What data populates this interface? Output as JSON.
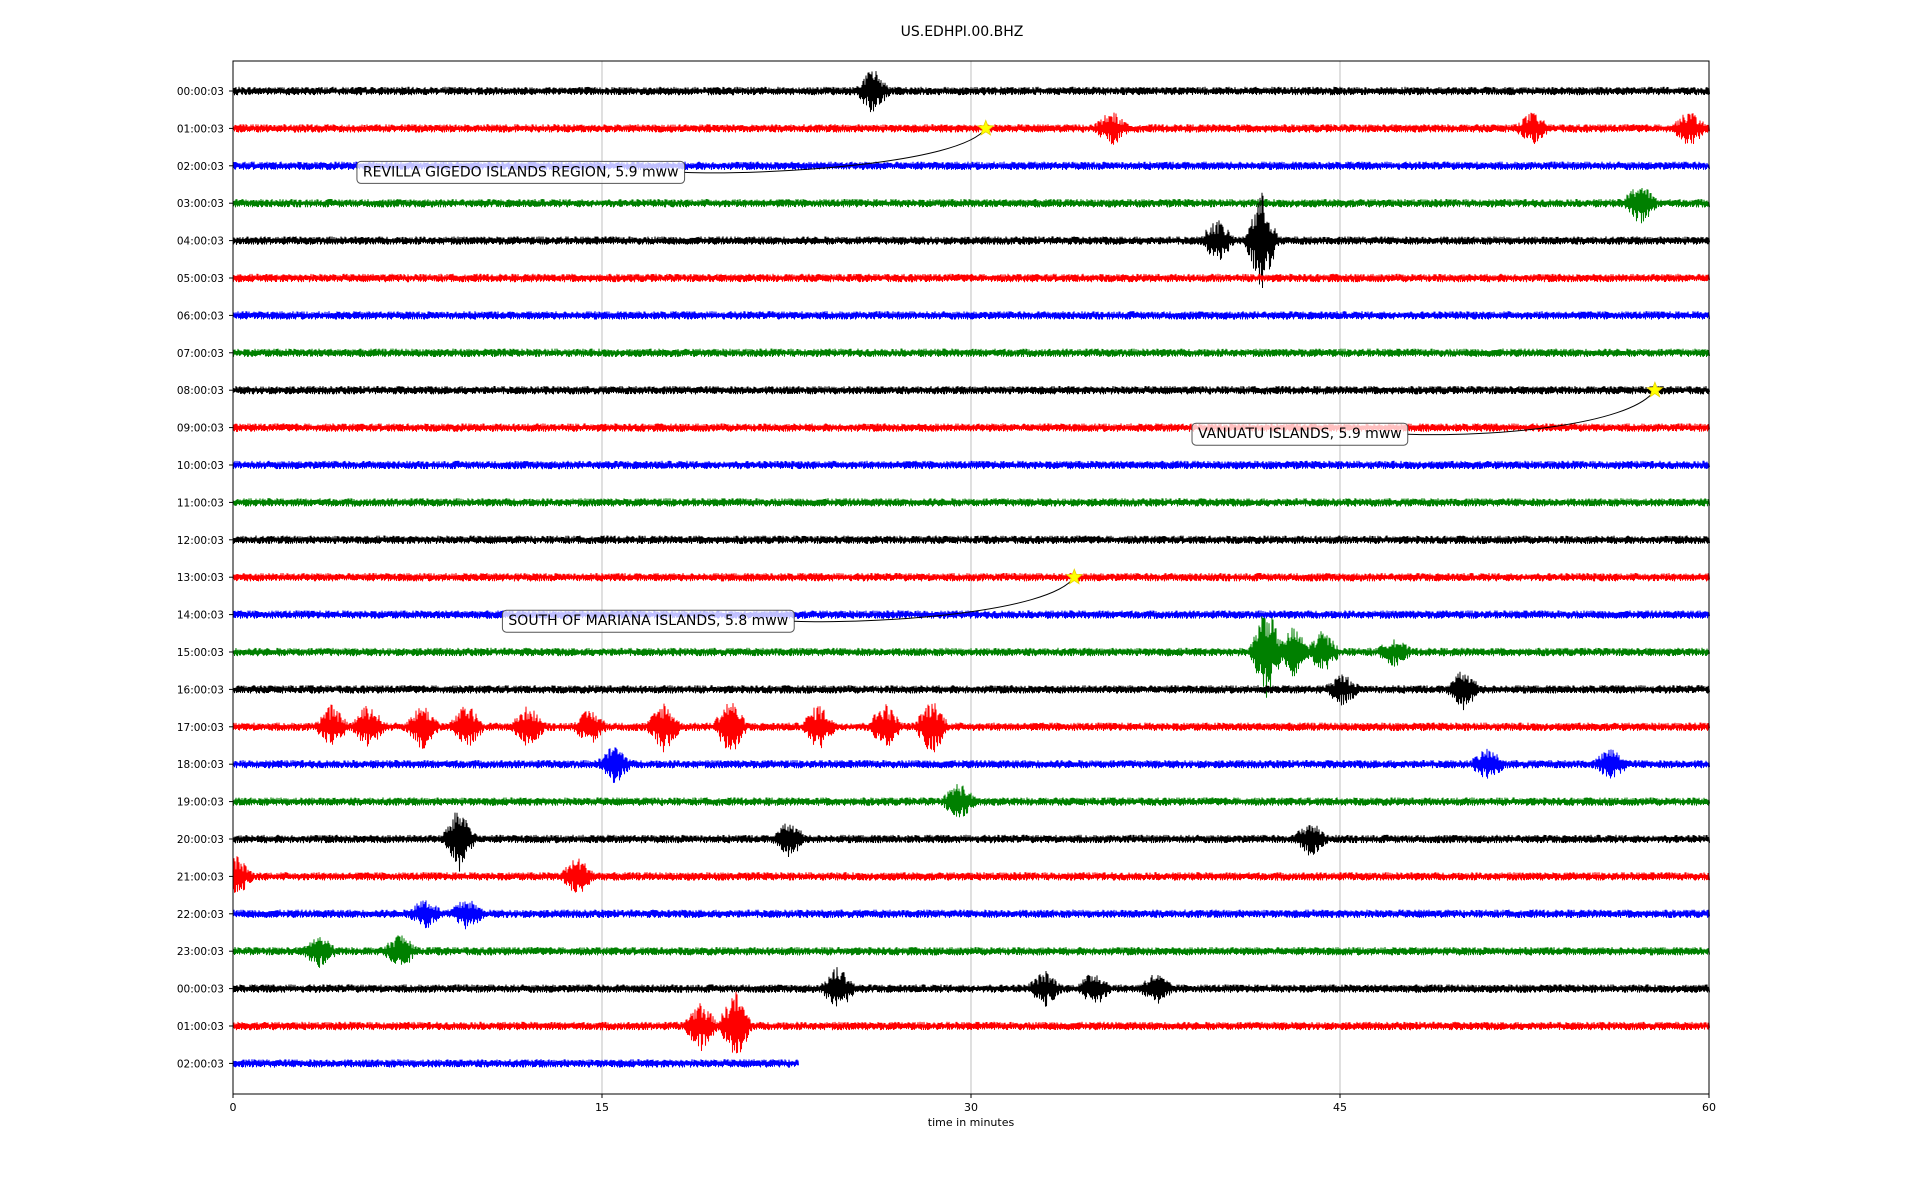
{
  "chart_data": {
    "type": "line",
    "title": "US.EDHPI.00.BHZ",
    "xlabel": "time in minutes",
    "ylabel": "",
    "xlim": [
      0,
      60
    ],
    "x_ticks": [
      0,
      15,
      30,
      45,
      60
    ],
    "grid": "vertical lines at x ticks",
    "row_labels": [
      "00:00:03",
      "01:00:03",
      "02:00:03",
      "03:00:03",
      "04:00:03",
      "05:00:03",
      "06:00:03",
      "07:00:03",
      "08:00:03",
      "09:00:03",
      "10:00:03",
      "11:00:03",
      "12:00:03",
      "13:00:03",
      "14:00:03",
      "15:00:03",
      "16:00:03",
      "17:00:03",
      "18:00:03",
      "19:00:03",
      "20:00:03",
      "21:00:03",
      "22:00:03",
      "23:00:03",
      "00:00:03",
      "01:00:03",
      "02:00:03"
    ],
    "trace_colors": [
      "#000000",
      "#ff0000",
      "#0000ff",
      "#008000"
    ],
    "last_trace_end_minute": 23.0,
    "events": [
      {
        "row": 1,
        "minute": 30.6,
        "label": "REVILLA GIGEDO ISLANDS REGION, 5.9 mww"
      },
      {
        "row": 8,
        "minute": 57.8,
        "label": "VANUATU ISLANDS, 5.9 mww"
      },
      {
        "row": 13,
        "minute": 34.2,
        "label": "SOUTH OF MARIANA ISLANDS, 5.8 mww"
      }
    ],
    "bursts": [
      {
        "row": 0,
        "minute": 26.0,
        "amp": 0.55
      },
      {
        "row": 1,
        "minute": 35.7,
        "amp": 0.4
      },
      {
        "row": 1,
        "minute": 52.8,
        "amp": 0.35
      },
      {
        "row": 1,
        "minute": 59.2,
        "amp": 0.4
      },
      {
        "row": 3,
        "minute": 57.2,
        "amp": 0.5
      },
      {
        "row": 4,
        "minute": 40.0,
        "amp": 0.5
      },
      {
        "row": 4,
        "minute": 41.8,
        "amp": 1.25
      },
      {
        "row": 15,
        "minute": 42.0,
        "amp": 1.25
      },
      {
        "row": 15,
        "minute": 43.1,
        "amp": 0.6
      },
      {
        "row": 15,
        "minute": 44.3,
        "amp": 0.5
      },
      {
        "row": 15,
        "minute": 47.2,
        "amp": 0.3
      },
      {
        "row": 16,
        "minute": 45.1,
        "amp": 0.35
      },
      {
        "row": 16,
        "minute": 50.0,
        "amp": 0.45
      },
      {
        "row": 17,
        "minute": 4.0,
        "amp": 0.5
      },
      {
        "row": 17,
        "minute": 5.5,
        "amp": 0.55
      },
      {
        "row": 17,
        "minute": 7.7,
        "amp": 0.55
      },
      {
        "row": 17,
        "minute": 9.5,
        "amp": 0.55
      },
      {
        "row": 17,
        "minute": 12.0,
        "amp": 0.5
      },
      {
        "row": 17,
        "minute": 14.5,
        "amp": 0.4
      },
      {
        "row": 17,
        "minute": 17.5,
        "amp": 0.6
      },
      {
        "row": 17,
        "minute": 20.2,
        "amp": 0.7
      },
      {
        "row": 17,
        "minute": 23.8,
        "amp": 0.55
      },
      {
        "row": 17,
        "minute": 26.5,
        "amp": 0.6
      },
      {
        "row": 17,
        "minute": 28.4,
        "amp": 0.7
      },
      {
        "row": 18,
        "minute": 15.5,
        "amp": 0.45
      },
      {
        "row": 18,
        "minute": 51.0,
        "amp": 0.35
      },
      {
        "row": 18,
        "minute": 56.0,
        "amp": 0.35
      },
      {
        "row": 19,
        "minute": 29.5,
        "amp": 0.45
      },
      {
        "row": 20,
        "minute": 9.2,
        "amp": 0.8
      },
      {
        "row": 20,
        "minute": 22.6,
        "amp": 0.4
      },
      {
        "row": 20,
        "minute": 43.8,
        "amp": 0.4
      },
      {
        "row": 21,
        "minute": 0.1,
        "amp": 0.5
      },
      {
        "row": 21,
        "minute": 14.0,
        "amp": 0.45
      },
      {
        "row": 22,
        "minute": 7.8,
        "amp": 0.35
      },
      {
        "row": 22,
        "minute": 9.5,
        "amp": 0.35
      },
      {
        "row": 23,
        "minute": 3.5,
        "amp": 0.35
      },
      {
        "row": 23,
        "minute": 6.8,
        "amp": 0.4
      },
      {
        "row": 24,
        "minute": 24.6,
        "amp": 0.55
      },
      {
        "row": 24,
        "minute": 33.0,
        "amp": 0.4
      },
      {
        "row": 24,
        "minute": 35.0,
        "amp": 0.4
      },
      {
        "row": 24,
        "minute": 37.5,
        "amp": 0.35
      },
      {
        "row": 25,
        "minute": 19.0,
        "amp": 0.6
      },
      {
        "row": 25,
        "minute": 20.4,
        "amp": 0.9
      }
    ]
  }
}
